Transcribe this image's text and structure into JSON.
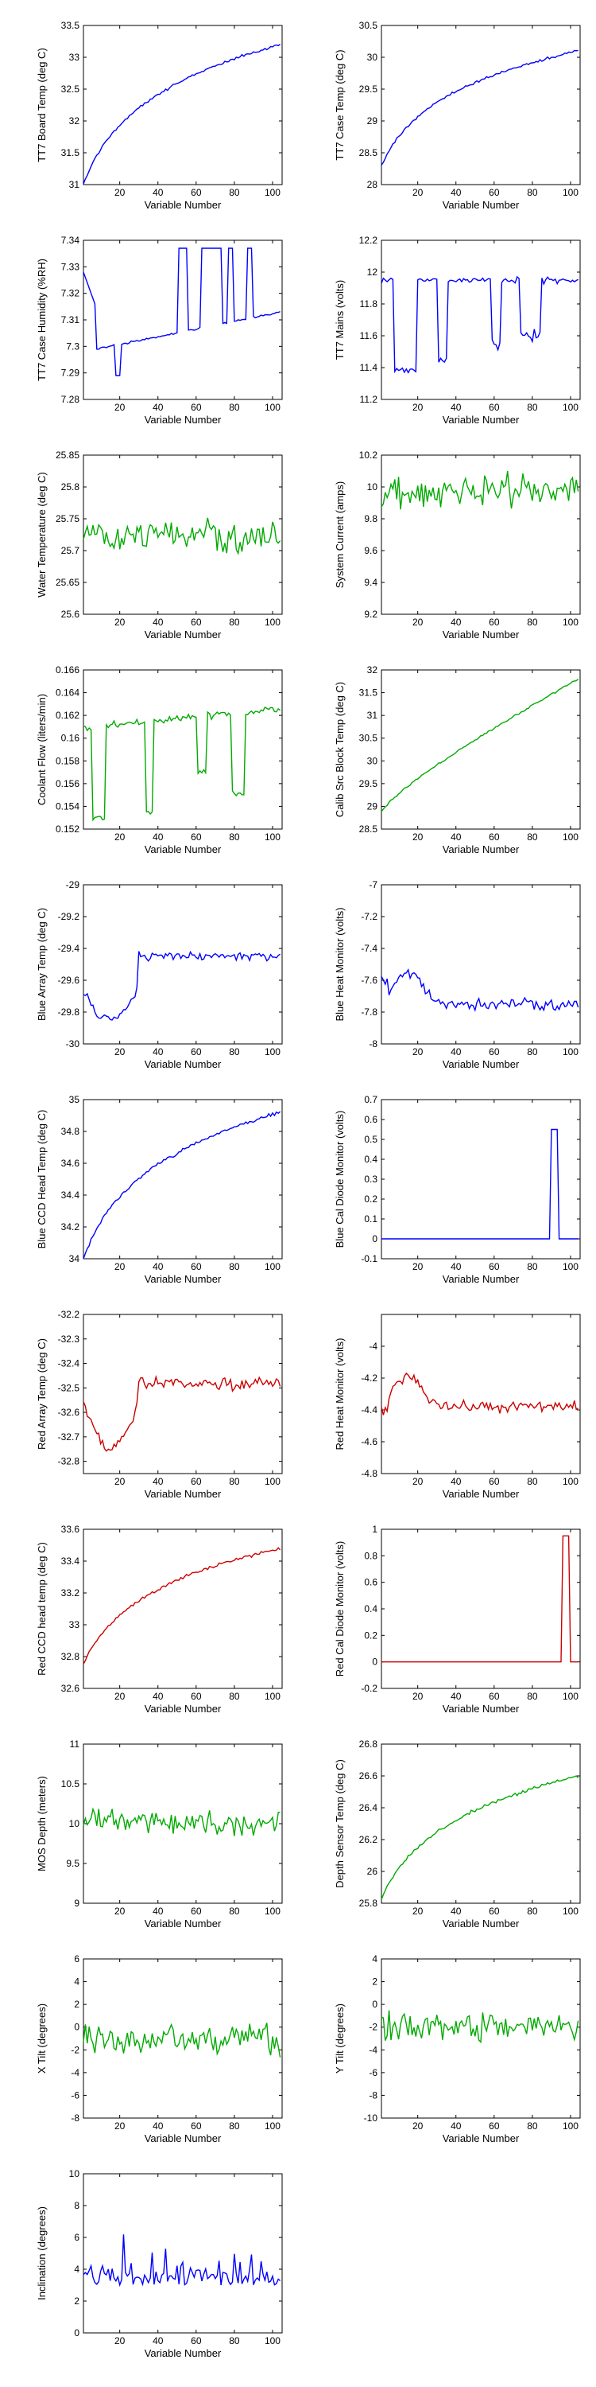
{
  "figure": {
    "colors": {
      "blue": "#0000ff",
      "green": "#00aa00",
      "red": "#cc0000",
      "axis": "#000000"
    },
    "xlabel": "Variable Number",
    "xticks": [
      20,
      40,
      60,
      80,
      100
    ],
    "xlim": [
      1,
      105
    ]
  },
  "chart_data": [
    {
      "type": "line",
      "ylabel": "TT7 Board Temp (deg C)",
      "color": "blue",
      "ylim": [
        31,
        33.5
      ],
      "yticks": [
        31,
        31.5,
        32,
        32.5,
        33,
        33.5
      ],
      "ytick_labels": [
        "31",
        "31.5",
        "32",
        "32.5",
        "33",
        "33.5"
      ],
      "shape": "log_rise",
      "start": 31.0,
      "end": 33.2,
      "noise": 0.03,
      "x": [
        1,
        105
      ]
    },
    {
      "type": "line",
      "ylabel": "TT7 Case Temp (deg C)",
      "color": "blue",
      "ylim": [
        28,
        30.5
      ],
      "yticks": [
        28,
        28.5,
        29,
        29.5,
        30,
        30.5
      ],
      "ytick_labels": [
        "28",
        "28.5",
        "29",
        "29.5",
        "30",
        "30.5"
      ],
      "shape": "log_rise",
      "start": 28.3,
      "end": 30.1,
      "noise": 0.03,
      "x": [
        1,
        105
      ]
    },
    {
      "type": "line",
      "ylabel": "TT7 Case Humidity (%RH)",
      "color": "blue",
      "ylim": [
        7.28,
        7.34
      ],
      "yticks": [
        7.28,
        7.29,
        7.3,
        7.31,
        7.32,
        7.33,
        7.34
      ],
      "ytick_labels": [
        "7.28",
        "7.29",
        "7.3",
        "7.31",
        "7.32",
        "7.33",
        "7.34"
      ],
      "shape": "humidity",
      "start": 7.31,
      "end": 7.313,
      "noise": 0.0005,
      "x": [
        1,
        105
      ]
    },
    {
      "type": "line",
      "ylabel": "TT7 Mains  (volts)",
      "color": "blue",
      "ylim": [
        11.2,
        12.2
      ],
      "yticks": [
        11.2,
        11.4,
        11.6,
        11.8,
        12,
        12.2
      ],
      "ytick_labels": [
        "11.2",
        "11.4",
        "11.6",
        "11.8",
        "12",
        "12.2"
      ],
      "shape": "mains",
      "start": 11.95,
      "end": 11.9,
      "noise": 0.03,
      "x": [
        1,
        105
      ]
    },
    {
      "type": "line",
      "ylabel": "Water Temperature (deg C)",
      "color": "green",
      "ylim": [
        25.6,
        25.85
      ],
      "yticks": [
        25.6,
        25.65,
        25.7,
        25.75,
        25.8,
        25.85
      ],
      "ytick_labels": [
        "25.6",
        "25.65",
        "25.7",
        "25.75",
        "25.8",
        "25.85"
      ],
      "shape": "noisy",
      "start": 25.73,
      "end": 25.72,
      "noise": 0.035,
      "x": [
        1,
        105
      ]
    },
    {
      "type": "line",
      "ylabel": "System Current (amps)",
      "color": "green",
      "ylim": [
        9.2,
        10.2
      ],
      "yticks": [
        9.2,
        9.4,
        9.6,
        9.8,
        10,
        10.2
      ],
      "ytick_labels": [
        "9.2",
        "9.4",
        "9.6",
        "9.8",
        "10",
        "10.2"
      ],
      "shape": "noisy",
      "start": 9.95,
      "end": 10.0,
      "noise": 0.15,
      "x": [
        1,
        105
      ]
    },
    {
      "type": "line",
      "ylabel": "Coolant Flow (liters/min)",
      "color": "green",
      "ylim": [
        0.152,
        0.166
      ],
      "yticks": [
        0.152,
        0.154,
        0.156,
        0.158,
        0.16,
        0.162,
        0.164,
        0.166
      ],
      "ytick_labels": [
        "0.152",
        "0.154",
        "0.156",
        "0.158",
        "0.16",
        "0.162",
        "0.164",
        "0.166"
      ],
      "shape": "flow",
      "start": 0.161,
      "end": 0.162,
      "noise": 0.0005,
      "x": [
        1,
        105
      ]
    },
    {
      "type": "line",
      "ylabel": "Calib Src Block Temp (deg C)",
      "color": "green",
      "ylim": [
        28.5,
        32
      ],
      "yticks": [
        28.5,
        29,
        29.5,
        30,
        30.5,
        31,
        31.5,
        32
      ],
      "ytick_labels": [
        "28.5",
        "29",
        "29.5",
        "30",
        "30.5",
        "31",
        "31.5",
        "32"
      ],
      "shape": "linear_rise",
      "start": 28.9,
      "end": 31.8,
      "noise": 0.03,
      "x": [
        1,
        105
      ]
    },
    {
      "type": "line",
      "ylabel": "Blue Array Temp (deg C)",
      "color": "blue",
      "ylim": [
        -30,
        -29
      ],
      "yticks": [
        -30,
        -29.8,
        -29.6,
        -29.4,
        -29.2,
        -29
      ],
      "ytick_labels": [
        "-30",
        "-29.8",
        "-29.6",
        "-29.4",
        "-29.2",
        "-29"
      ],
      "shape": "array_temp",
      "start": -29.65,
      "end": -29.45,
      "noise": 0.04,
      "x": [
        1,
        105
      ]
    },
    {
      "type": "line",
      "ylabel": "Blue Heat Monitor (volts)",
      "color": "blue",
      "ylim": [
        -8,
        -7
      ],
      "yticks": [
        -8,
        -7.8,
        -7.6,
        -7.4,
        -7.2,
        -7
      ],
      "ytick_labels": [
        "-8",
        "-7.8",
        "-7.6",
        "-7.4",
        "-7.2",
        "-7"
      ],
      "shape": "heat_monitor",
      "start": -7.5,
      "end": -7.75,
      "noise": 0.05,
      "x": [
        1,
        105
      ]
    },
    {
      "type": "line",
      "ylabel": "Blue CCD Head Temp (deg C)",
      "color": "blue",
      "ylim": [
        34,
        35
      ],
      "yticks": [
        34,
        34.2,
        34.4,
        34.6,
        34.8,
        35
      ],
      "ytick_labels": [
        "34",
        "34.2",
        "34.4",
        "34.6",
        "34.8",
        "35"
      ],
      "shape": "log_rise",
      "start": 34.0,
      "end": 34.92,
      "noise": 0.015,
      "x": [
        1,
        105
      ]
    },
    {
      "type": "line",
      "ylabel": "Blue Cal Diode Monitor (volts)",
      "color": "blue",
      "ylim": [
        -0.1,
        0.7
      ],
      "yticks": [
        -0.1,
        0,
        0.1,
        0.2,
        0.3,
        0.4,
        0.5,
        0.6,
        0.7
      ],
      "ytick_labels": [
        "-0.1",
        "0",
        "0.1",
        "0.2",
        "0.3",
        "0.4",
        "0.5",
        "0.6",
        "0.7"
      ],
      "shape": "spike",
      "start": 0.0,
      "end": 0.55,
      "spike_at": [
        90,
        93
      ],
      "noise": 0.0,
      "x": [
        1,
        105
      ]
    },
    {
      "type": "line",
      "ylabel": "Red Array Temp (deg C)",
      "color": "red",
      "ylim": [
        -32.85,
        -32.2
      ],
      "yticks": [
        -32.8,
        -32.7,
        -32.6,
        -32.5,
        -32.4,
        -32.3,
        -32.2
      ],
      "ytick_labels": [
        "-32.8",
        "-32.7",
        "-32.6",
        "-32.5",
        "-32.4",
        "-32.3",
        "-32.2"
      ],
      "shape": "array_temp",
      "start": -32.55,
      "end": -32.48,
      "noise": 0.04,
      "x": [
        1,
        105
      ]
    },
    {
      "type": "line",
      "ylabel": "Red Heat Monitor (volts)",
      "color": "red",
      "ylim": [
        -4.8,
        -3.8
      ],
      "yticks": [
        -4.8,
        -4.6,
        -4.4,
        -4.2,
        -4
      ],
      "ytick_labels": [
        "-4.8",
        "-4.6",
        "-4.4",
        "-4.2",
        "-4"
      ],
      "shape": "heat_monitor",
      "start": -4.3,
      "end": -4.38,
      "noise": 0.05,
      "x": [
        1,
        105
      ]
    },
    {
      "type": "line",
      "ylabel": "Red CCD head temp (deg C)",
      "color": "red",
      "ylim": [
        32.6,
        33.6
      ],
      "yticks": [
        32.6,
        32.8,
        33,
        33.2,
        33.4,
        33.6
      ],
      "ytick_labels": [
        "32.6",
        "32.8",
        "33",
        "33.2",
        "33.4",
        "33.6"
      ],
      "shape": "log_rise",
      "start": 32.75,
      "end": 33.48,
      "noise": 0.015,
      "x": [
        1,
        105
      ]
    },
    {
      "type": "line",
      "ylabel": "Red Cal Diode Monitor (volts)",
      "color": "red",
      "ylim": [
        -0.2,
        1
      ],
      "yticks": [
        -0.2,
        0,
        0.2,
        0.4,
        0.6,
        0.8,
        1
      ],
      "ytick_labels": [
        "-0.2",
        "0",
        "0.2",
        "0.4",
        "0.6",
        "0.8",
        "1"
      ],
      "shape": "spike",
      "start": 0.0,
      "end": 0.95,
      "spike_at": [
        96,
        99
      ],
      "noise": 0.0,
      "x": [
        1,
        105
      ]
    },
    {
      "type": "line",
      "ylabel": "MOS Depth  (meters)",
      "color": "green",
      "ylim": [
        9,
        11
      ],
      "yticks": [
        9,
        9.5,
        10,
        10.5,
        11
      ],
      "ytick_labels": [
        "9",
        "9.5",
        "10",
        "10.5",
        "11"
      ],
      "shape": "noisy",
      "start": 10.05,
      "end": 10.0,
      "noise": 0.22,
      "x": [
        1,
        105
      ]
    },
    {
      "type": "line",
      "ylabel": "Depth Sensor Temp (deg C)",
      "color": "green",
      "ylim": [
        25.8,
        26.8
      ],
      "yticks": [
        25.8,
        26,
        26.2,
        26.4,
        26.6,
        26.8
      ],
      "ytick_labels": [
        "25.8",
        "26",
        "26.2",
        "26.4",
        "26.6",
        "26.8"
      ],
      "shape": "log_rise",
      "start": 25.82,
      "end": 26.6,
      "noise": 0.015,
      "x": [
        1,
        105
      ]
    },
    {
      "type": "line",
      "ylabel": "X Tilt  (degrees)",
      "color": "green",
      "ylim": [
        -8,
        6
      ],
      "yticks": [
        -8,
        -6,
        -4,
        -2,
        0,
        2,
        4,
        6
      ],
      "ytick_labels": [
        "-8",
        "-6",
        "-4",
        "-2",
        "0",
        "2",
        "4",
        "6"
      ],
      "shape": "noisy",
      "start": -1.0,
      "end": -1.0,
      "noise": 2.0,
      "x": [
        1,
        105
      ]
    },
    {
      "type": "line",
      "ylabel": "Y Tilt  (degrees)",
      "color": "green",
      "ylim": [
        -10,
        4
      ],
      "yticks": [
        -10,
        -8,
        -6,
        -4,
        -2,
        0,
        2,
        4
      ],
      "ytick_labels": [
        "-10",
        "-8",
        "-6",
        "-4",
        "-2",
        "0",
        "2",
        "4"
      ],
      "shape": "noisy",
      "start": -2.0,
      "end": -2.0,
      "noise": 2.0,
      "x": [
        1,
        105
      ]
    },
    {
      "type": "line",
      "ylabel": "Inclination  (degrees)",
      "color": "blue",
      "ylim": [
        0,
        10
      ],
      "yticks": [
        0,
        2,
        4,
        6,
        8,
        10
      ],
      "ytick_labels": [
        "0",
        "2",
        "4",
        "6",
        "8",
        "10"
      ],
      "shape": "incl",
      "start": 3.0,
      "end": 3.5,
      "noise": 1.8,
      "x": [
        1,
        105
      ]
    }
  ]
}
